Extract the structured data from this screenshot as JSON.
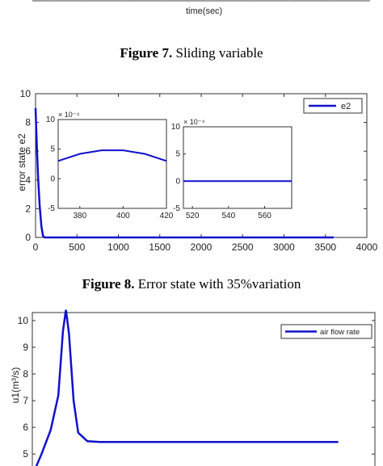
{
  "fig7": {
    "xlabel": "time(sec)",
    "caption_label": "Figure 7.",
    "caption_text": " Sliding variable"
  },
  "fig8": {
    "caption_label": "Figure 8.",
    "caption_text": " Error state with 35%variation"
  },
  "chart_data": [
    {
      "type": "line",
      "title": "",
      "ylabel": "error state e2",
      "xlabel": "",
      "xlim": [
        0,
        4000
      ],
      "ylim": [
        0,
        10
      ],
      "xticks": [
        0,
        500,
        1000,
        1500,
        2000,
        2500,
        3000,
        3500,
        4000
      ],
      "yticks": [
        0,
        2,
        4,
        6,
        8,
        10
      ],
      "legend": "top-right",
      "series": [
        {
          "name": "e2",
          "color": "#1010cc",
          "x": [
            0,
            15,
            30,
            50,
            70,
            90,
            110,
            3600
          ],
          "y": [
            9.0,
            6.5,
            4.2,
            2.2,
            0.8,
            0.1,
            0.0,
            0.0
          ]
        }
      ],
      "insets": [
        {
          "exponent": "× 10⁻⁴",
          "xlim": [
            370,
            420
          ],
          "ylim": [
            -5,
            10
          ],
          "xticks": [
            380,
            400,
            420
          ],
          "yticks": [
            -5,
            0,
            5,
            10
          ],
          "x": [
            370,
            380,
            390,
            400,
            410,
            420
          ],
          "y": [
            3.0,
            4.2,
            4.8,
            4.8,
            4.2,
            3.0
          ]
        },
        {
          "exponent": "× 10⁻⁴",
          "xlim": [
            515,
            575
          ],
          "ylim": [
            -5,
            10
          ],
          "xticks": [
            520,
            540,
            560
          ],
          "yticks": [
            -5,
            0,
            5,
            10
          ],
          "x": [
            515,
            575
          ],
          "y": [
            0.0,
            0.0
          ]
        }
      ]
    },
    {
      "type": "line",
      "title": "",
      "ylabel": "u1(m³/s)",
      "xlabel": "",
      "ylim": [
        4.2,
        10.4
      ],
      "yticks": [
        5,
        6,
        7,
        8,
        9,
        10
      ],
      "legend": "top-right",
      "series": [
        {
          "name": "air flow rate",
          "color": "#1010cc",
          "x": [
            0,
            0.3,
            0.6,
            0.85,
            1.0,
            1.1,
            1.2,
            1.35,
            1.5,
            1.8,
            2.2,
            10
          ],
          "y": [
            4.2,
            5.0,
            5.9,
            7.2,
            9.6,
            10.4,
            9.5,
            7.0,
            5.8,
            5.48,
            5.45,
            5.45
          ]
        }
      ]
    }
  ]
}
